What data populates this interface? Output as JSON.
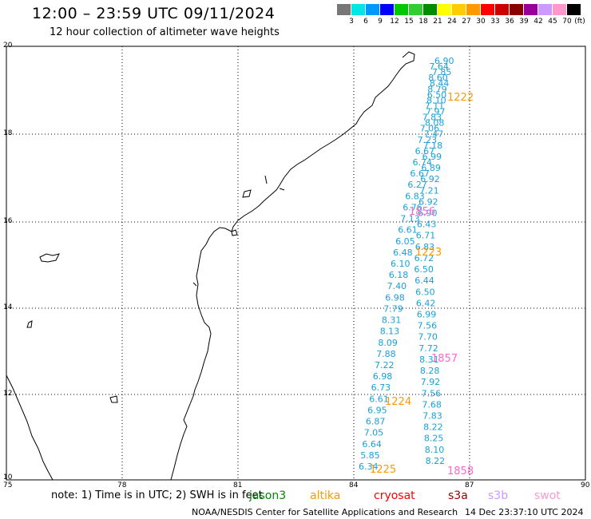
{
  "header": {
    "title": "12:00 – 23:59 UTC 09/11/2024",
    "subtitle": "12 hour collection of altimeter wave heights"
  },
  "scale": {
    "unit": "(ft)",
    "ticks": [
      "3",
      "6",
      "9",
      "12",
      "15",
      "18",
      "21",
      "24",
      "27",
      "30",
      "33",
      "36",
      "39",
      "42",
      "45",
      "70"
    ],
    "colors": [
      "#777777",
      "#00e5e5",
      "#0099ff",
      "#0000ff",
      "#00c800",
      "#33cc33",
      "#008c00",
      "#ffff00",
      "#ffcc00",
      "#ff9900",
      "#ff0000",
      "#cc0000",
      "#880000",
      "#990099",
      "#cc99ff",
      "#ff99cc",
      "#000000"
    ]
  },
  "axes": {
    "lat_labels": [
      "20",
      "18",
      "16",
      "14",
      "12",
      "10"
    ],
    "lon_labels": [
      "75",
      "78",
      "81",
      "84",
      "87",
      "90"
    ]
  },
  "passes": [
    {
      "label": "1222",
      "color": "#ff9900"
    },
    {
      "label": "1856",
      "color": "#ff66cc"
    },
    {
      "label": "1223",
      "color": "#ff9900"
    },
    {
      "label": "1857",
      "color": "#ff66cc"
    },
    {
      "label": "1224",
      "color": "#ff9900"
    },
    {
      "label": "1225",
      "color": "#ff9900"
    },
    {
      "label": "1858",
      "color": "#ff66cc"
    }
  ],
  "track_values": [
    "6.90",
    "7.64",
    "7.85",
    "8.60",
    "8.44",
    "8.79",
    "6.50",
    "8.10",
    "7.11",
    "7.97",
    "7.83",
    "8.08",
    "7.06",
    "7.47",
    "7.23",
    "7.18",
    "6.67",
    "6.99",
    "6.74",
    "6.89",
    "6.67",
    "6.92",
    "6.27",
    "7.21",
    "6.83",
    "6.92",
    "6.76",
    "6.90",
    "7.13",
    "6.43",
    "6.61",
    "6.71",
    "6.05",
    "6.83",
    "6.48",
    "6.72",
    "6.10",
    "6.50",
    "6.18",
    "6.44",
    "7.40",
    "6.50",
    "6.98",
    "6.42",
    "7.79",
    "6.99",
    "8.31",
    "7.56",
    "8.13",
    "7.70",
    "8.09",
    "7.72",
    "7.88",
    "8.31",
    "7.22",
    "8.28",
    "6.98",
    "7.92",
    "6.73",
    "7.56",
    "6.61",
    "7.68",
    "6.95",
    "7.83",
    "6.87",
    "8.22",
    "7.05",
    "8.25",
    "6.64",
    "8.10",
    "5.85",
    "8.22",
    "6.34"
  ],
  "footer": {
    "note": "note:  1) Time is in UTC; 2) SWH is in feet",
    "satellites": [
      {
        "name": "jason3",
        "color": "#008800"
      },
      {
        "name": "altika",
        "color": "#ff9900"
      },
      {
        "name": "cryosat",
        "color": "#ff0000"
      },
      {
        "name": "s3a",
        "color": "#990000"
      },
      {
        "name": "s3b",
        "color": "#cc99ff"
      },
      {
        "name": "swot",
        "color": "#ff99cc"
      }
    ],
    "credit": "NOAA/NESDIS Center for Satellite Applications and Research",
    "timestamp": "14 Dec 23:37:10 UTC 2024"
  }
}
